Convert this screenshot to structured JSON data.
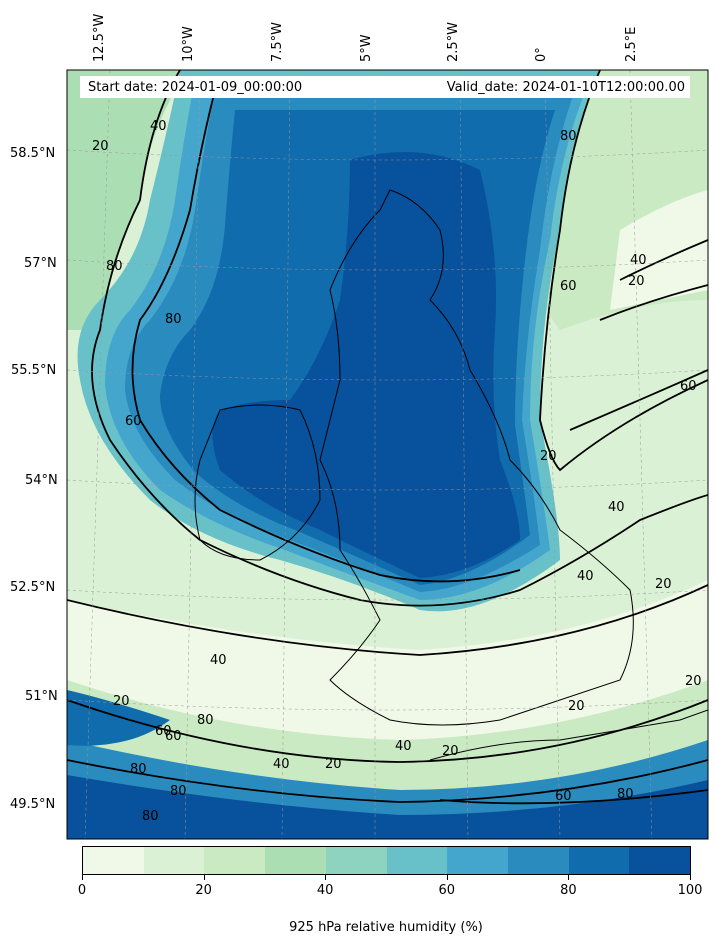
{
  "header": {
    "start_date": "Start date: 2024-01-09_00:00:00",
    "valid_date": "Valid_date: 2024-01-10T12:00:00.00"
  },
  "longitude_labels": [
    "12.5°W",
    "10°W",
    "7.5°W",
    "5°W",
    "2.5°W",
    "0°",
    "2.5°E"
  ],
  "latitude_labels": [
    "58.5°N",
    "57°N",
    "55.5°N",
    "54°N",
    "52.5°N",
    "51°N",
    "49.5°N"
  ],
  "contour_labels": [
    "20",
    "40",
    "60",
    "80",
    "40",
    "20",
    "60",
    "20",
    "80",
    "80",
    "60",
    "40",
    "20",
    "40",
    "20",
    "20",
    "60",
    "80",
    "20",
    "40",
    "80",
    "60",
    "80",
    "40",
    "20",
    "80",
    "80",
    "60",
    "40",
    "20"
  ],
  "colorbar": {
    "title": "925 hPa relative humidity (%)",
    "tick_labels": [
      "0",
      "20",
      "40",
      "60",
      "80",
      "100"
    ],
    "levels": [
      0,
      10,
      20,
      30,
      40,
      50,
      60,
      70,
      80,
      90,
      100
    ],
    "colors": [
      "#f0f9e8",
      "#dbf1d5",
      "#c9eac2",
      "#acdeb4",
      "#8dd3bf",
      "#68c1c9",
      "#45a6cd",
      "#2a8bbe",
      "#106cac",
      "#08519c"
    ]
  }
}
